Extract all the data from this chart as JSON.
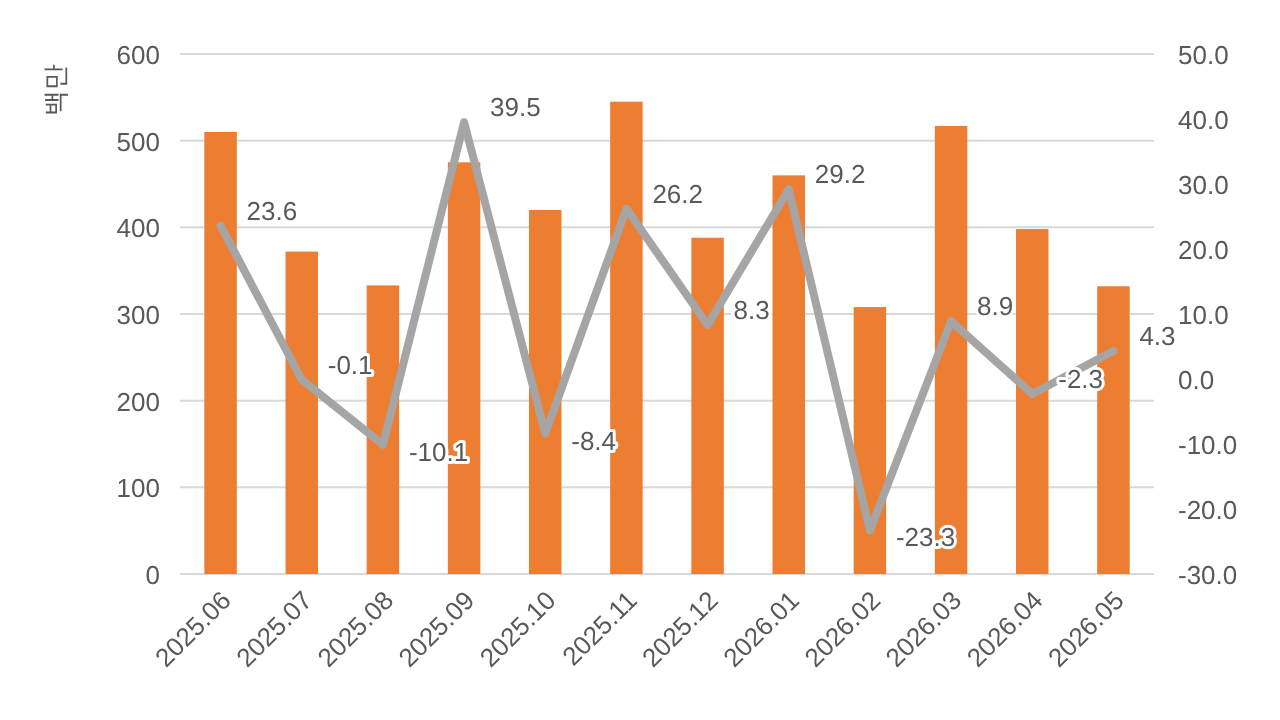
{
  "chart_data": {
    "type": "bar",
    "ylabel": "백만",
    "categories": [
      "2025.06",
      "2025.07",
      "2025.08",
      "2025.09",
      "2025.10",
      "2025.11",
      "2025.12",
      "2026.01",
      "2026.02",
      "2026.03",
      "2026.04",
      "2026.05"
    ],
    "series": [
      {
        "color": "#ed7d31",
        "values": [
          510,
          372,
          333,
          475,
          420,
          545,
          388,
          460,
          308,
          517,
          398,
          332
        ]
      },
      {
        "type": "line",
        "axis": "y2",
        "color": "#a5a5a5",
        "values": [
          23.6,
          -0.1,
          -10.1,
          39.5,
          -8.4,
          26.2,
          8.3,
          29.2,
          -23.3,
          8.9,
          -2.3,
          4.3
        ],
        "value_labels": [
          "23.6",
          "-0.1",
          "-10.1",
          "39.5",
          "-8.4",
          "26.2",
          "8.3",
          "29.2",
          "-23.3",
          "8.9",
          "-2.3",
          "4.3"
        ]
      }
    ],
    "ylim": [
      0,
      600
    ],
    "yticks": [
      0,
      100,
      200,
      300,
      400,
      500,
      600
    ],
    "y2lim": [
      -30,
      50
    ],
    "y2ticks": [
      {
        "value": -30,
        "label": "-30.0"
      },
      {
        "value": -20,
        "label": "-20.0"
      },
      {
        "value": -10,
        "label": "-10.0"
      },
      {
        "value": 0,
        "label": "0.0"
      },
      {
        "value": 10,
        "label": "10.0"
      },
      {
        "value": 20,
        "label": "20.0"
      },
      {
        "value": 30,
        "label": "30.0"
      },
      {
        "value": 40,
        "label": "40.0"
      },
      {
        "value": 50,
        "label": "50.0"
      }
    ],
    "grid": "y"
  }
}
